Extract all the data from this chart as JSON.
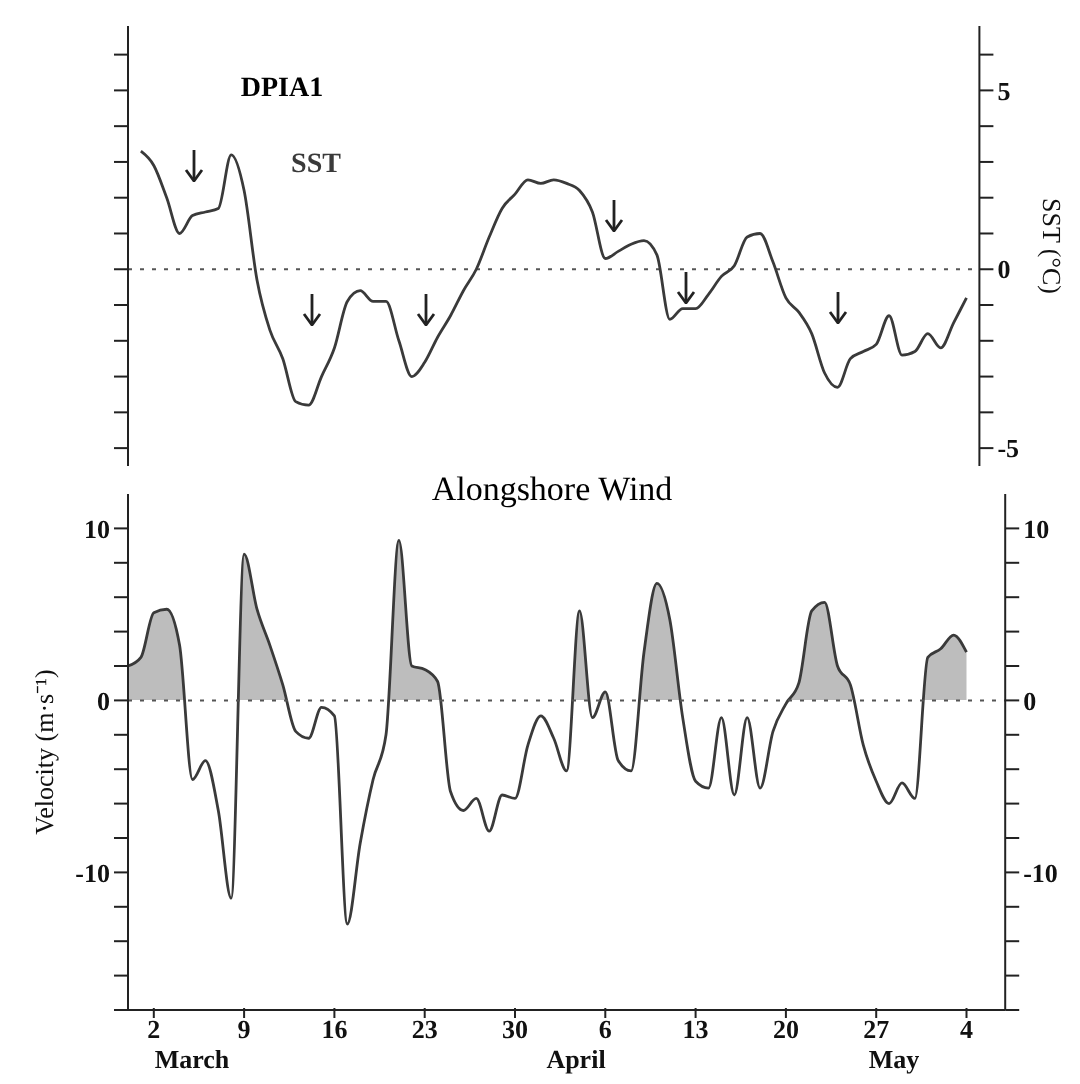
{
  "chart_data": [
    {
      "type": "line",
      "title": "DPIA1",
      "ylabel": "SST (°C)",
      "tick_labels": "y",
      "categories": [
        null,
        null,
        null,
        null,
        null,
        null,
        null,
        null,
        null,
        null,
        null,
        null,
        null,
        null,
        null,
        null,
        null,
        null,
        null,
        null,
        null,
        null,
        null,
        null,
        null,
        null,
        null,
        null,
        null,
        null,
        null,
        null,
        null,
        null,
        null,
        null,
        null,
        null,
        null,
        null,
        null,
        null,
        null,
        null,
        null,
        null,
        null,
        null,
        null,
        null,
        null,
        null,
        null,
        null,
        null,
        null,
        null,
        null,
        null,
        null,
        null,
        null,
        null,
        null,
        null
      ],
      "ylim": [
        -5.5,
        6.8
      ],
      "yticks": [
        -5,
        {
          "value": -4,
          "label": null
        },
        {
          "value": -3,
          "label": null
        },
        {
          "value": -2,
          "label": null
        },
        {
          "value": -1,
          "label": null
        },
        0,
        {
          "value": 1,
          "label": null
        },
        {
          "value": 2,
          "label": null
        },
        {
          "value": 3,
          "label": null
        },
        {
          "value": 4,
          "label": null
        },
        5,
        {
          "value": 6,
          "label": null
        }
      ],
      "ref_lines": [
        {
          "axis": "y",
          "value": 0,
          "color": "#555555",
          "line_style": "dotted"
        }
      ],
      "series": [
        {
          "name": "SST",
          "color": "#3a3a3a",
          "values": [
            3.3,
            2.9,
            2.0,
            1.0,
            1.5,
            1.6,
            1.7,
            3.2,
            2.2,
            -0.3,
            -1.7,
            -2.5,
            -3.7,
            -3.8,
            -3.0,
            -2.2,
            -0.9,
            -0.6,
            -0.9,
            -0.9,
            -2.0,
            -3.0,
            -2.6,
            -1.9,
            -1.3,
            -0.6,
            0.0,
            0.9,
            1.7,
            2.1,
            2.5,
            2.4,
            2.5,
            2.4,
            2.2,
            1.6,
            0.3,
            0.5,
            0.7,
            0.8,
            0.4,
            -1.4,
            -1.1,
            -1.1,
            -0.7,
            -0.2,
            0.1,
            0.9,
            1.0,
            0.2,
            -0.8,
            -1.2,
            -1.8,
            -2.9,
            -3.3,
            -2.5,
            -2.3,
            -2.1,
            -1.3,
            -2.4,
            -2.3,
            -1.8,
            -2.2,
            -1.5,
            -0.8
          ]
        }
      ]
    },
    {
      "type": "area",
      "title": "Alongshore Wind",
      "ylabel": "Velocity (m·s⁻¹)",
      "xlim": [
        "--02-28",
        "--05-07"
      ],
      "xticks": [
        {
          "value": "--03-02",
          "label": "2"
        },
        {
          "value": "--03-09",
          "label": "9"
        },
        {
          "value": "--03-16",
          "label": "16"
        },
        {
          "value": "--03-23",
          "label": "23"
        },
        {
          "value": "--03-30",
          "label": "30"
        },
        {
          "value": "--04-06",
          "label": "6"
        },
        {
          "value": "--04-13",
          "label": "13"
        },
        {
          "value": "--04-20",
          "label": "20"
        },
        {
          "value": "--04-27",
          "label": "27"
        },
        {
          "value": "--05-04",
          "label": "4"
        }
      ],
      "annotations": [
        "March",
        "April",
        "May"
      ],
      "ylim": [
        -18,
        12
      ],
      "yticks": [
        {
          "value": -18,
          "label": null
        },
        {
          "value": -16,
          "label": null
        },
        {
          "value": -14,
          "label": null
        },
        {
          "value": -12,
          "label": null
        },
        -10,
        {
          "value": -8,
          "label": null
        },
        {
          "value": -6,
          "label": null
        },
        {
          "value": -4,
          "label": null
        },
        {
          "value": -2,
          "label": null
        },
        0,
        {
          "value": 2,
          "label": null
        },
        {
          "value": 4,
          "label": null
        },
        {
          "value": 6,
          "label": null
        },
        {
          "value": 8,
          "label": null
        },
        10
      ],
      "y2lim": [
        -18,
        12
      ],
      "y2ticks": [
        {
          "value": -18,
          "label": null
        },
        {
          "value": -16,
          "label": null
        },
        {
          "value": -14,
          "label": null
        },
        {
          "value": -12,
          "label": null
        },
        -10,
        {
          "value": -8,
          "label": null
        },
        {
          "value": -6,
          "label": null
        },
        {
          "value": -4,
          "label": null
        },
        {
          "value": -2,
          "label": null
        },
        0,
        {
          "value": 2,
          "label": null
        },
        {
          "value": 4,
          "label": null
        },
        {
          "value": 6,
          "label": null
        },
        {
          "value": 8,
          "label": null
        },
        10
      ],
      "ref_lines": [
        {
          "axis": "y",
          "value": 0,
          "color": "#555555",
          "line_style": "dotted"
        }
      ],
      "x": [
        "--02-28",
        "--03-01",
        "--03-02",
        "--03-03",
        "--03-04",
        "--03-05",
        "--03-06",
        "--03-07",
        "--03-08",
        "--03-09",
        "--03-10",
        "--03-11",
        "--03-12",
        "--03-13",
        "--03-14",
        "--03-15",
        "--03-16",
        "--03-17",
        "--03-18",
        "--03-19",
        "--03-20",
        "--03-21",
        "--03-22",
        "--03-23",
        "--03-24",
        "--03-25",
        "--03-26",
        "--03-27",
        "--03-28",
        "--03-29",
        "--03-30",
        "--03-31",
        "--04-01",
        "--04-02",
        "--04-03",
        "--04-04",
        "--04-05",
        "--04-06",
        "--04-07",
        "--04-08",
        "--04-09",
        "--04-10",
        "--04-11",
        "--04-12",
        "--04-13",
        "--04-14",
        "--04-15",
        "--04-16",
        "--04-17",
        "--04-18",
        "--04-19",
        "--04-20",
        "--04-21",
        "--04-22",
        "--04-23",
        "--04-24",
        "--04-25",
        "--04-26",
        "--04-27",
        "--04-28",
        "--04-29",
        "--04-30",
        "--05-01",
        "--05-02",
        "--05-03",
        "--05-04"
      ],
      "series": [
        {
          "color": "#3a3a3a",
          "values": [
            2.0,
            2.5,
            5.1,
            5.3,
            3.2,
            -4.6,
            -3.5,
            -6.4,
            -11.5,
            8.5,
            5.3,
            3.2,
            0.9,
            -1.8,
            -2.2,
            -0.4,
            -0.9,
            -13.0,
            -8.3,
            -4.6,
            -2.0,
            9.3,
            2.0,
            1.8,
            1.1,
            -5.3,
            -6.4,
            -5.7,
            -7.6,
            -5.5,
            -5.7,
            -2.6,
            -0.9,
            -2.2,
            -4.1,
            5.2,
            -1.0,
            0.5,
            -3.5,
            -4.1,
            2.8,
            6.8,
            4.7,
            -1.0,
            -4.7,
            -5.1,
            -1.0,
            -5.5,
            -1.0,
            -5.1,
            -1.8,
            -0.2,
            1.0,
            5.2,
            5.7,
            2.0,
            0.9,
            -2.6,
            -4.7,
            -6.0,
            -4.8,
            -5.7,
            2.5,
            3.0,
            3.8,
            2.8
          ]
        }
      ]
    }
  ]
}
